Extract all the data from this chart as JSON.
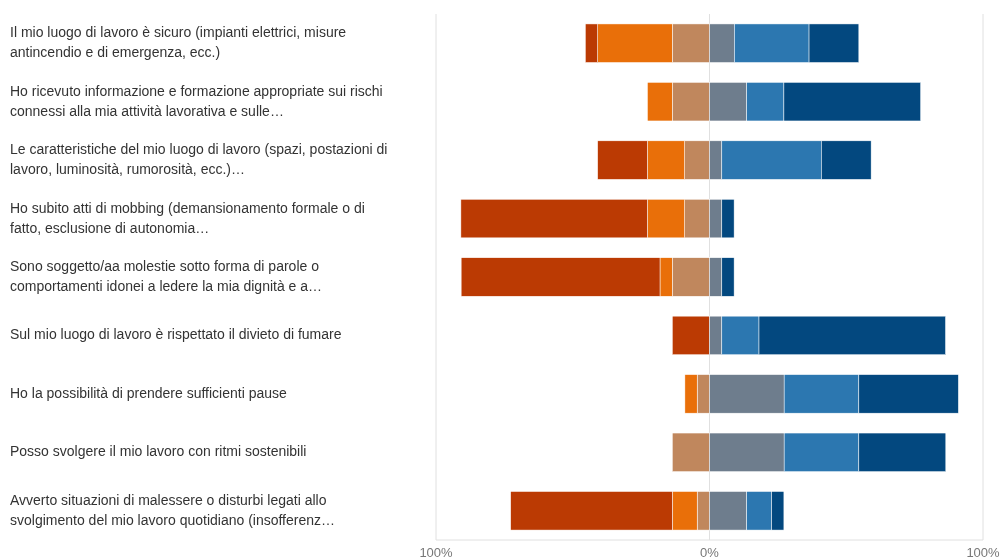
{
  "chart_data": {
    "type": "bar",
    "orientation": "horizontal",
    "stacked": true,
    "categories": [
      "Il mio luogo di lavoro è sicuro (impianti elettrici, misure antincendio e di emergenza, ecc.)",
      "Ho ricevuto informazione e formazione appropriate sui rischi connessi alla mia attività lavorativa e sulle…",
      "Le caratteristiche del mio luogo di lavoro (spazi, postazioni di lavoro, luminosità, rumorosità, ecc.)…",
      "Ho subito atti di mobbing (demansionamento formale o di fatto, esclusione di autonomia…",
      "Sono soggetto/aa molestie sotto forma di parole o comportamenti idonei a ledere la mia dignità e a…",
      "Sul mio luogo di lavoro è rispettato il divieto di fumare",
      "Ho la possibilità di prendere sufficienti pause",
      "Posso svolgere il mio lavoro con ritmi sostenibili",
      "Avverto situazioni di malessere o disturbi legati allo svolgimento del mio lavoro quotidiano (insofferenz…"
    ],
    "series": [
      {
        "color": "#c0875d",
        "values": [
          -13.6,
          -13.6,
          -9.1,
          -9.1,
          -13.6,
          null,
          -4.5,
          -13.6,
          -4.5
        ]
      },
      {
        "color": "#e96f09",
        "values": [
          -27.3,
          -9.1,
          -13.6,
          -13.6,
          -4.5,
          null,
          -4.5,
          null,
          -9.1
        ]
      },
      {
        "color": "#bb3a03",
        "values": [
          -4.5,
          null,
          -18.2,
          -68.2,
          -72.7,
          -13.6,
          null,
          null,
          -59.1
        ]
      },
      {
        "color": "#6e7d8d",
        "values": [
          9.1,
          13.6,
          4.5,
          4.5,
          4.5,
          4.5,
          27.3,
          27.3,
          13.6
        ]
      },
      {
        "color": "#2c77b0",
        "values": [
          27.3,
          13.6,
          36.4,
          null,
          null,
          13.6,
          27.3,
          27.3,
          9.1
        ]
      },
      {
        "color": "#03487f",
        "values": [
          18.2,
          50,
          18.2,
          4.5,
          4.5,
          68.2,
          36.4,
          31.8,
          4.5
        ]
      }
    ],
    "xlim": [
      -100,
      100
    ],
    "xticks": [
      {
        "value": -100,
        "label": "100%"
      },
      {
        "value": 0,
        "label": "0%"
      },
      {
        "value": 100,
        "label": "100%"
      }
    ],
    "grid": "x"
  }
}
